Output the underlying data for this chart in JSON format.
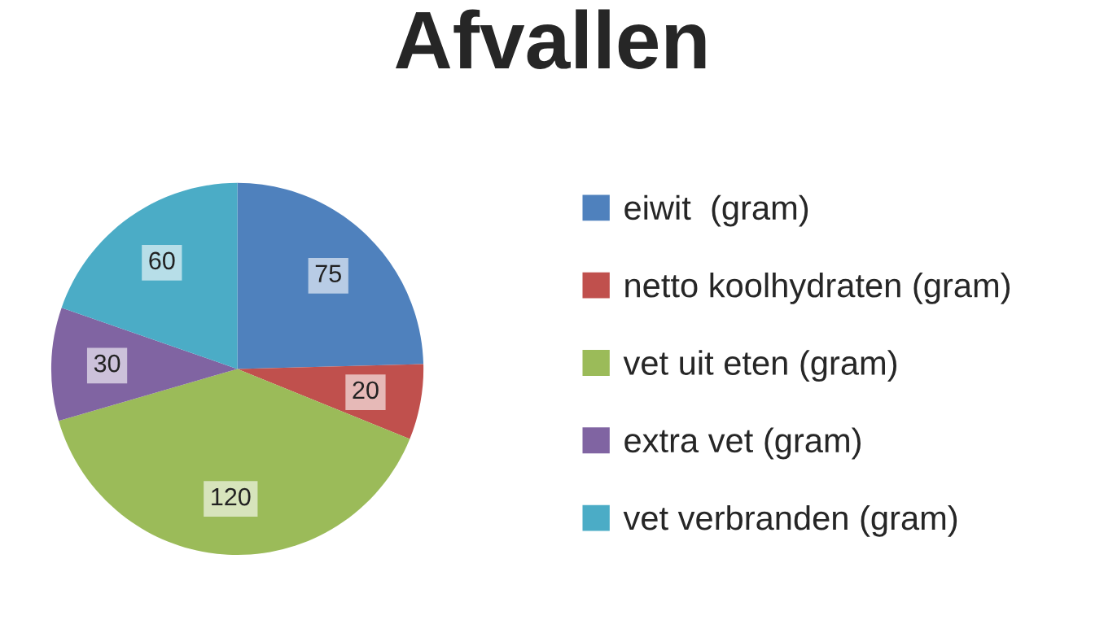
{
  "chart_data": {
    "type": "pie",
    "title": "Afvallen",
    "categories": [
      "eiwit  (gram)",
      "netto koolhydraten (gram)",
      "vet uit eten (gram)",
      "extra vet (gram)",
      "vet verbranden (gram)"
    ],
    "values": [
      75,
      20,
      120,
      30,
      60
    ],
    "colors": [
      "#4f81bd",
      "#c0504d",
      "#9bbb59",
      "#8064a2",
      "#4bacc6"
    ],
    "data_labels": true,
    "legend": "right"
  }
}
